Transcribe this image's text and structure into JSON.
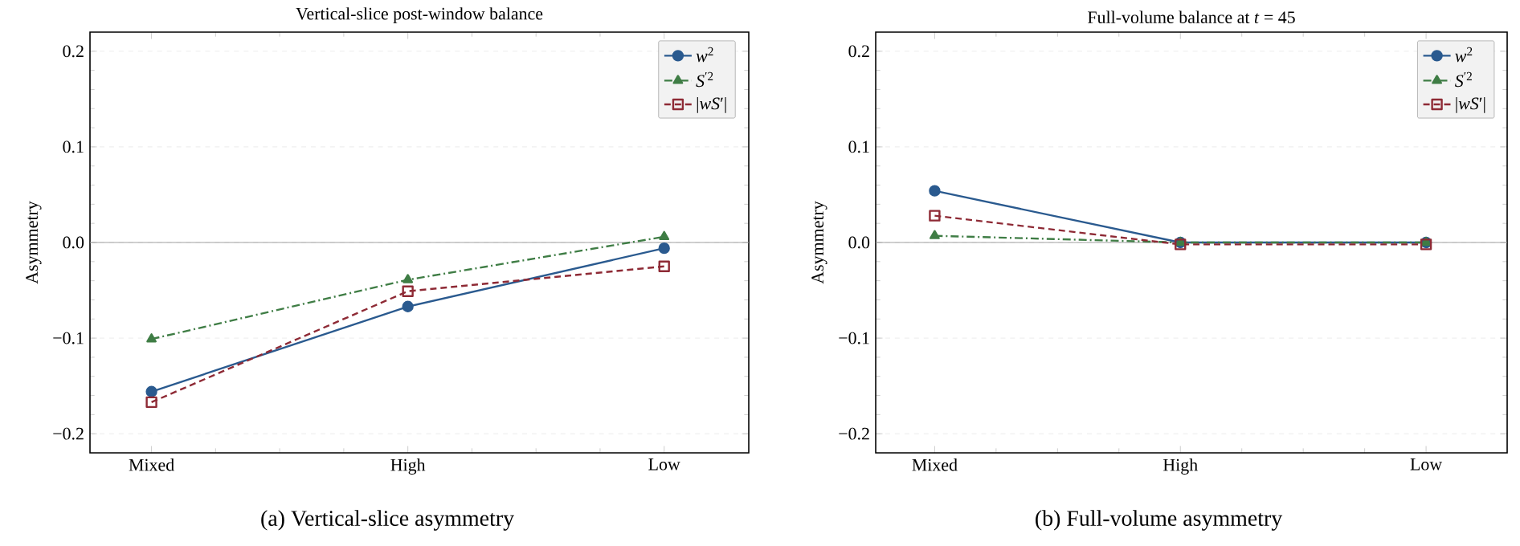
{
  "chart_data": [
    {
      "type": "line",
      "title": "Vertical-slice post-window balance",
      "ylabel": "Asymmetry",
      "categories": [
        "Mixed",
        "High",
        "Low"
      ],
      "series": [
        {
          "name": "*w*$^{2}$",
          "color": "#2a5a8f",
          "marker": "circle",
          "line_style": "solid",
          "values": [
            -0.156,
            -0.067,
            -0.006
          ]
        },
        {
          "name": "*S*$^{′2}$",
          "color": "#3f7d45",
          "marker": "triangle",
          "line_style": "dashdot",
          "values": [
            -0.101,
            -0.039,
            0.006
          ]
        },
        {
          "name": "|*wS*′|",
          "color": "#8e2a35",
          "marker": "square",
          "line_style": "dashed",
          "values": [
            -0.167,
            -0.051,
            -0.025
          ]
        }
      ],
      "ylim": [
        -0.22,
        0.22
      ],
      "yticks": [
        {
          "value": -0.2,
          "label": "−0.2"
        },
        {
          "value": -0.1,
          "label": "−0.1"
        },
        {
          "value": 0.0,
          "label": "0.0"
        },
        {
          "value": 0.1,
          "label": "0.1"
        },
        {
          "value": 0.2,
          "label": "0.2"
        }
      ],
      "grid": "y",
      "legend": "top right",
      "ref_lines": [
        {
          "axis": "y",
          "value": 0,
          "color": "#a0a0a0"
        }
      ],
      "annotations": [
        "(a) Vertical-slice asymmetry"
      ]
    },
    {
      "type": "line",
      "title": "Full-volume balance at *t* = 45",
      "ylabel": "Asymmetry",
      "categories": [
        "Mixed",
        "High",
        "Low"
      ],
      "series": [
        {
          "name": "*w*$^{2}$",
          "color": "#2a5a8f",
          "marker": "circle",
          "line_style": "solid",
          "values": [
            0.054,
            0.0,
            0.0
          ]
        },
        {
          "name": "*S*$^{′2}$",
          "color": "#3f7d45",
          "marker": "triangle",
          "line_style": "dashdot",
          "values": [
            0.007,
            0.0,
            0.0
          ]
        },
        {
          "name": "|*wS*′|",
          "color": "#8e2a35",
          "marker": "square",
          "line_style": "dashed",
          "values": [
            0.028,
            -0.002,
            -0.002
          ]
        }
      ],
      "ylim": [
        -0.22,
        0.22
      ],
      "yticks": [
        {
          "value": -0.2,
          "label": "−0.2"
        },
        {
          "value": -0.1,
          "label": "−0.1"
        },
        {
          "value": 0.0,
          "label": "0.0"
        },
        {
          "value": 0.1,
          "label": "0.1"
        },
        {
          "value": 0.2,
          "label": "0.2"
        }
      ],
      "grid": "y",
      "legend": "top right",
      "ref_lines": [
        {
          "axis": "y",
          "value": 0,
          "color": "#a0a0a0"
        }
      ],
      "annotations": [
        "(b) Full-volume asymmetry"
      ]
    }
  ]
}
